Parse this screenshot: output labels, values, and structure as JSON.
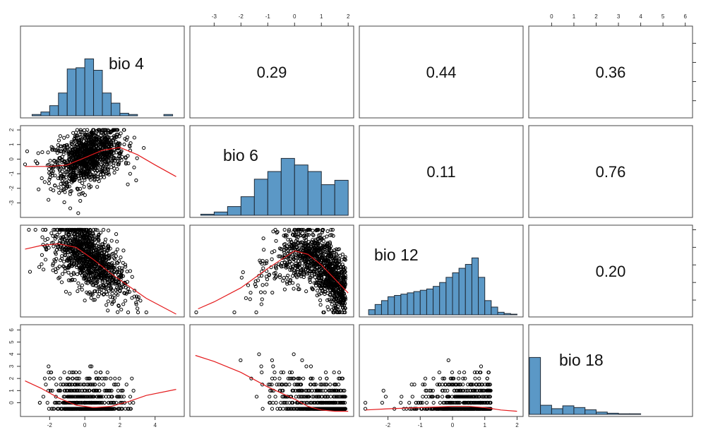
{
  "chart_data": {
    "type": "scatter-matrix",
    "variables": [
      "bio  4",
      "bio  6",
      "bio  12",
      "bio  18"
    ],
    "histogram_color": "#5b98c6",
    "smooth_color": "#e41a1c",
    "correlations": [
      {
        "row": 0,
        "col": 1,
        "label": "0.29",
        "value": 0.29
      },
      {
        "row": 0,
        "col": 2,
        "label": "0.44",
        "value": 0.44
      },
      {
        "row": 0,
        "col": 3,
        "label": "0.36",
        "value": 0.36
      },
      {
        "row": 1,
        "col": 2,
        "label": "0.11",
        "value": 0.11
      },
      {
        "row": 1,
        "col": 3,
        "label": "0.76",
        "value": 0.76
      },
      {
        "row": 2,
        "col": 3,
        "label": "0.20",
        "value": 0.2
      }
    ],
    "ranges": {
      "bio4": [
        -3.5,
        5.5
      ],
      "bio6": [
        -3.8,
        2.1
      ],
      "bio12": [
        -2.8,
        2.1
      ],
      "bio18": [
        -0.9,
        6.2
      ]
    },
    "axes": {
      "bottom": [
        {
          "col": 0,
          "ticks": [
            -2,
            0,
            2,
            4
          ],
          "labels": [
            "-2",
            "0",
            "2",
            "4"
          ]
        },
        {
          "col": 2,
          "ticks": [
            -2,
            -1,
            0,
            1,
            2
          ],
          "labels": [
            "-2",
            "-1",
            "0",
            "1",
            "2"
          ]
        }
      ],
      "top": [
        {
          "col": 1,
          "ticks": [
            -3,
            -2,
            -1,
            0,
            1,
            2
          ],
          "labels": [
            "-3",
            "-2",
            "-1",
            "0",
            "1",
            "2"
          ]
        },
        {
          "col": 3,
          "ticks": [
            0,
            1,
            2,
            3,
            4,
            5,
            6
          ],
          "labels": [
            "0",
            "1",
            "2",
            "3",
            "4",
            "5",
            "6"
          ]
        }
      ],
      "left": [
        {
          "row": 1,
          "ticks": [
            2,
            1,
            0,
            -1,
            -2,
            -3
          ],
          "labels": [
            "2",
            "1",
            "0",
            "-1",
            "-2",
            "-3"
          ]
        },
        {
          "row": 3,
          "ticks": [
            6,
            5,
            4,
            3,
            2,
            1,
            0
          ],
          "labels": [
            "6",
            "5",
            "4",
            "3",
            "2",
            "1",
            "0"
          ]
        }
      ],
      "right": [
        {
          "row": 0,
          "ticks": [
            -2,
            0,
            2,
            4
          ],
          "labels": [
            "",
            "",
            "",
            ""
          ]
        },
        {
          "row": 2,
          "ticks": [
            -2,
            -1,
            0,
            1,
            2
          ],
          "labels": [
            "",
            "",
            "",
            "",
            ""
          ]
        }
      ]
    },
    "histograms": [
      {
        "variable": "bio  4",
        "bin_start": -3.0,
        "bin_width": 0.5,
        "counts": [
          1,
          3,
          8,
          18,
          37,
          38,
          45,
          36,
          18,
          10,
          2,
          1,
          0,
          0,
          0,
          1
        ]
      },
      {
        "variable": "bio  6",
        "bin_start": -3.5,
        "bin_width": 0.5,
        "counts": [
          1,
          3,
          8,
          17,
          33,
          40,
          52,
          46,
          40,
          28,
          32
        ]
      },
      {
        "variable": "bio  12",
        "bin_start": -2.6,
        "bin_width": 0.2,
        "counts": [
          8,
          16,
          22,
          28,
          30,
          32,
          34,
          36,
          38,
          40,
          44,
          50,
          58,
          65,
          72,
          78,
          88,
          58,
          22,
          12,
          4,
          2,
          1
        ]
      },
      {
        "variable": "bio  18",
        "bin_start": -1.0,
        "bin_width": 0.5,
        "counts": [
          100,
          16,
          10,
          15,
          12,
          8,
          4,
          2,
          1,
          1,
          0,
          0,
          0,
          0
        ]
      }
    ],
    "smooth_lines": [
      {
        "x": "bio  4",
        "y": "bio  6",
        "points": [
          [
            -3.4,
            -0.5
          ],
          [
            -2,
            -0.5
          ],
          [
            -1,
            -0.4
          ],
          [
            0,
            0.1
          ],
          [
            1,
            0.6
          ],
          [
            2,
            0.8
          ],
          [
            3,
            0.3
          ],
          [
            4,
            -0.4
          ],
          [
            5.2,
            -1.2
          ]
        ]
      },
      {
        "x": "bio  4",
        "y": "bio  12",
        "points": [
          [
            -3.4,
            0.9
          ],
          [
            -2.5,
            1.1
          ],
          [
            -1.5,
            1.2
          ],
          [
            -0.5,
            1.0
          ],
          [
            0.5,
            0.3
          ],
          [
            1.5,
            -0.5
          ],
          [
            2.5,
            -1.2
          ],
          [
            3.5,
            -1.9
          ],
          [
            5.2,
            -2.8
          ]
        ]
      },
      {
        "x": "bio  6",
        "y": "bio  12",
        "points": [
          [
            -3.6,
            -2.5
          ],
          [
            -3,
            -2.1
          ],
          [
            -2,
            -1.3
          ],
          [
            -1,
            -0.2
          ],
          [
            0,
            0.8
          ],
          [
            0.5,
            0.6
          ],
          [
            1,
            0.0
          ],
          [
            1.5,
            -0.8
          ],
          [
            2,
            -1.6
          ]
        ]
      },
      {
        "x": "bio  4",
        "y": "bio  18",
        "points": [
          [
            -3.4,
            1.8
          ],
          [
            -2.5,
            1.2
          ],
          [
            -1.5,
            0.4
          ],
          [
            -0.5,
            -0.2
          ],
          [
            0.5,
            -0.4
          ],
          [
            1.5,
            -0.3
          ],
          [
            2.5,
            0.1
          ],
          [
            3.5,
            0.6
          ],
          [
            5.2,
            1.1
          ]
        ]
      },
      {
        "x": "bio  6",
        "y": "bio  18",
        "points": [
          [
            -3.7,
            3.9
          ],
          [
            -3,
            3.4
          ],
          [
            -2,
            2.5
          ],
          [
            -1,
            1.3
          ],
          [
            0,
            0.3
          ],
          [
            0.5,
            -0.3
          ],
          [
            1,
            -0.6
          ],
          [
            1.5,
            -0.7
          ],
          [
            2,
            -0.7
          ]
        ]
      },
      {
        "x": "bio  12",
        "y": "bio  18",
        "points": [
          [
            -2.7,
            -0.6
          ],
          [
            -2,
            -0.5
          ],
          [
            -1,
            -0.4
          ],
          [
            0,
            -0.3
          ],
          [
            0.5,
            -0.3
          ],
          [
            1,
            -0.4
          ],
          [
            1.5,
            -0.6
          ],
          [
            2,
            -0.7
          ]
        ]
      }
    ]
  }
}
